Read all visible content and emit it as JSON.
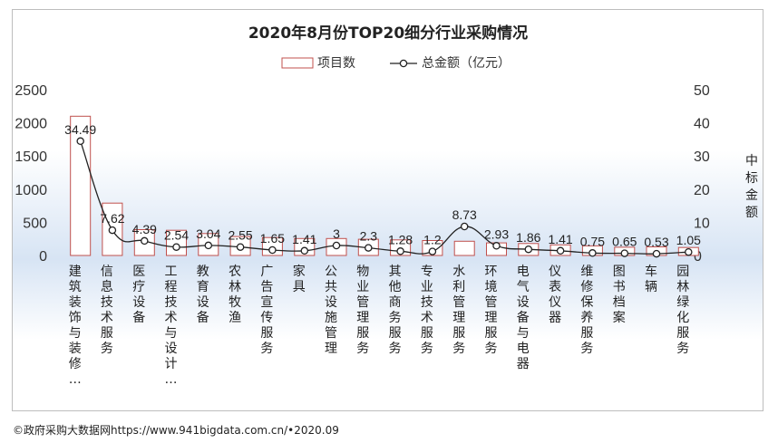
{
  "chart_data": {
    "type": "bar+line",
    "title": "2020年8月份TOP20细分行业采购情况",
    "categories": [
      "建筑装饰与装修…",
      "信息技术服务",
      "医疗设备",
      "工程技术与设计…",
      "教育设备",
      "农林牧渔",
      "广告宣传服务",
      "家具",
      "公共设施管理",
      "物业管理服务",
      "其他商务服务",
      "专业技术服务",
      "水利管理服务",
      "环境管理服务",
      "电气设备与电器",
      "仪表仪器",
      "维修保养服务",
      "图书档案",
      "车辆",
      "园林绿化服务"
    ],
    "series": [
      {
        "name": "项目数",
        "type": "bar",
        "axis": "left",
        "values": [
          2100,
          790,
          390,
          380,
          330,
          285,
          270,
          255,
          255,
          245,
          235,
          225,
          215,
          190,
          180,
          160,
          145,
          125,
          130,
          120
        ]
      },
      {
        "name": "总金额（亿元）",
        "type": "line",
        "axis": "right",
        "values": [
          34.49,
          7.62,
          4.39,
          2.54,
          3.04,
          2.55,
          1.65,
          1.41,
          3,
          2.3,
          1.28,
          1.2,
          8.73,
          2.93,
          1.86,
          1.41,
          0.75,
          0.65,
          0.53,
          1.05
        ],
        "labels": [
          "34.49",
          "7.62",
          "4.39",
          "2.54",
          "3.04",
          "2.55",
          "1.65",
          "1.41",
          "3",
          "2.3",
          "1.28",
          "1.2",
          "8.73",
          "2.93",
          "1.86",
          "1.41",
          "0.75",
          "0.65",
          "0.53",
          "1.05"
        ]
      }
    ],
    "y_left": {
      "min": 0,
      "max": 2500,
      "ticks": [
        "0",
        "500",
        "1000",
        "1500",
        "2000",
        "2500"
      ]
    },
    "y_right": {
      "min": 0,
      "max": 50,
      "ticks": [
        "0",
        "10",
        "20",
        "30",
        "40",
        "50"
      ],
      "label": "中标金额"
    },
    "legend": {
      "position": "top"
    },
    "grid": false,
    "colors": {
      "bar_edge": "#c0504d",
      "bar_fill": "#ffffff",
      "line": "#222222",
      "bg_top": "#ffffff",
      "bg_mid": "#d7e4f4"
    }
  },
  "footer": {
    "text": "©政府采购大数据网https://www.941bigdata.com.cn/•2020.09"
  }
}
